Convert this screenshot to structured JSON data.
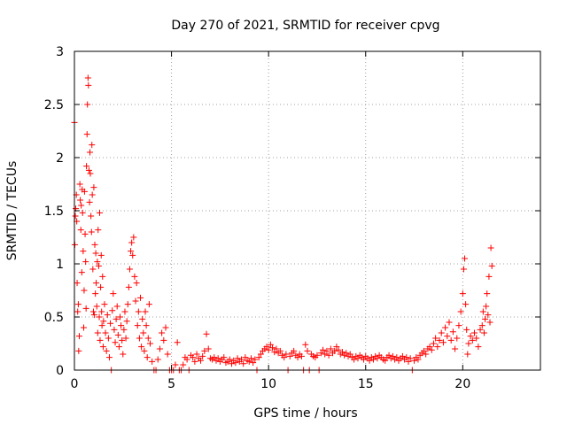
{
  "chart_data": {
    "type": "scatter",
    "title": "Day 270 of 2021, SRMTID for receiver cpvg",
    "xlabel": "GPS time / hours",
    "ylabel": "SRMTID / TECUs",
    "xlim": [
      0,
      24
    ],
    "ylim": [
      0,
      3
    ],
    "xticks": [
      0,
      5,
      10,
      15,
      20
    ],
    "yticks": [
      0,
      0.5,
      1,
      1.5,
      2,
      2.5,
      3
    ],
    "xtick_labels": [
      "0",
      "5",
      "10",
      "15",
      "20"
    ],
    "ytick_labels": [
      "0",
      "0.5",
      "1",
      "1.5",
      "2",
      "2.5",
      "3"
    ],
    "grid": true,
    "legend": "none",
    "series": [
      {
        "name": "SRMTID",
        "marker": "plus",
        "color": "#ff0000",
        "points": [
          [
            0.0,
            2.33
          ],
          [
            0.02,
            1.18
          ],
          [
            0.05,
            1.45
          ],
          [
            0.07,
            1.52
          ],
          [
            0.1,
            1.65
          ],
          [
            0.12,
            1.4
          ],
          [
            0.14,
            0.82
          ],
          [
            0.17,
            0.55
          ],
          [
            0.2,
            0.62
          ],
          [
            0.22,
            0.18
          ],
          [
            0.25,
            0.32
          ],
          [
            0.28,
            1.75
          ],
          [
            0.3,
            1.6
          ],
          [
            0.33,
            1.32
          ],
          [
            0.35,
            1.55
          ],
          [
            0.38,
            0.92
          ],
          [
            0.4,
            1.7
          ],
          [
            0.42,
            1.48
          ],
          [
            0.45,
            1.12
          ],
          [
            0.48,
            0.4
          ],
          [
            0.5,
            0.75
          ],
          [
            0.52,
            1.68
          ],
          [
            0.55,
            1.28
          ],
          [
            0.58,
            1.02
          ],
          [
            0.6,
            0.58
          ],
          [
            0.62,
            1.92
          ],
          [
            0.65,
            2.22
          ],
          [
            0.67,
            2.5
          ],
          [
            0.7,
            2.75
          ],
          [
            0.72,
            2.68
          ],
          [
            0.75,
            1.88
          ],
          [
            0.78,
            1.58
          ],
          [
            0.8,
            2.05
          ],
          [
            0.82,
            1.85
          ],
          [
            0.85,
            1.45
          ],
          [
            0.88,
            1.3
          ],
          [
            0.9,
            2.12
          ],
          [
            0.92,
            1.65
          ],
          [
            0.95,
            0.95
          ],
          [
            0.98,
            0.55
          ],
          [
            1.0,
            1.72
          ],
          [
            1.02,
            0.52
          ],
          [
            1.05,
            1.18
          ],
          [
            1.08,
            0.72
          ],
          [
            1.1,
            1.1
          ],
          [
            1.12,
            0.82
          ],
          [
            1.15,
            0.6
          ],
          [
            1.18,
            1.02
          ],
          [
            1.2,
            0.35
          ],
          [
            1.22,
            1.32
          ],
          [
            1.25,
            0.98
          ],
          [
            1.28,
            0.5
          ],
          [
            1.3,
            1.48
          ],
          [
            1.32,
            0.28
          ],
          [
            1.35,
            0.78
          ],
          [
            1.38,
            1.08
          ],
          [
            1.4,
            0.55
          ],
          [
            1.42,
            0.42
          ],
          [
            1.45,
            0.88
          ],
          [
            1.48,
            0.22
          ],
          [
            1.5,
            0.46
          ],
          [
            1.55,
            0.62
          ],
          [
            1.6,
            0.35
          ],
          [
            1.65,
            0.18
          ],
          [
            1.7,
            0.52
          ],
          [
            1.75,
            0.3
          ],
          [
            1.8,
            0.12
          ],
          [
            1.85,
            0.44
          ],
          [
            1.9,
            0.0
          ],
          [
            1.95,
            0.56
          ],
          [
            2.0,
            0.72
          ],
          [
            2.05,
            0.38
          ],
          [
            2.1,
            0.26
          ],
          [
            2.15,
            0.48
          ],
          [
            2.2,
            0.6
          ],
          [
            2.25,
            0.33
          ],
          [
            2.3,
            0.22
          ],
          [
            2.35,
            0.5
          ],
          [
            2.4,
            0.42
          ],
          [
            2.45,
            0.28
          ],
          [
            2.5,
            0.15
          ],
          [
            2.55,
            0.38
          ],
          [
            2.6,
            0.55
          ],
          [
            2.65,
            0.3
          ],
          [
            2.7,
            0.46
          ],
          [
            2.75,
            0.62
          ],
          [
            2.8,
            0.78
          ],
          [
            2.85,
            0.95
          ],
          [
            2.9,
            1.12
          ],
          [
            2.95,
            1.2
          ],
          [
            3.0,
            1.08
          ],
          [
            3.05,
            1.25
          ],
          [
            3.1,
            0.88
          ],
          [
            3.15,
            0.65
          ],
          [
            3.2,
            0.82
          ],
          [
            3.25,
            0.42
          ],
          [
            3.3,
            0.55
          ],
          [
            3.35,
            0.3
          ],
          [
            3.4,
            0.68
          ],
          [
            3.45,
            0.22
          ],
          [
            3.5,
            0.48
          ],
          [
            3.55,
            0.35
          ],
          [
            3.6,
            0.18
          ],
          [
            3.65,
            0.55
          ],
          [
            3.7,
            0.42
          ],
          [
            3.75,
            0.12
          ],
          [
            3.8,
            0.3
          ],
          [
            3.85,
            0.62
          ],
          [
            3.9,
            0.25
          ],
          [
            4.0,
            0.08
          ],
          [
            4.1,
            0.0
          ],
          [
            4.2,
            0.0
          ],
          [
            4.3,
            0.1
          ],
          [
            4.4,
            0.2
          ],
          [
            4.5,
            0.35
          ],
          [
            4.6,
            0.28
          ],
          [
            4.7,
            0.4
          ],
          [
            4.8,
            0.15
          ],
          [
            4.9,
            0.0
          ],
          [
            5.0,
            0.0
          ],
          [
            5.1,
            0.0
          ],
          [
            5.2,
            0.05
          ],
          [
            5.3,
            0.26
          ],
          [
            5.4,
            0.0
          ],
          [
            5.5,
            0.0
          ],
          [
            5.6,
            0.05
          ],
          [
            5.7,
            0.12
          ],
          [
            5.8,
            0.1
          ],
          [
            5.9,
            0.0
          ],
          [
            6.0,
            0.14
          ],
          [
            6.1,
            0.12
          ],
          [
            6.2,
            0.08
          ],
          [
            6.3,
            0.15
          ],
          [
            6.4,
            0.11
          ],
          [
            6.5,
            0.09
          ],
          [
            6.6,
            0.13
          ],
          [
            6.7,
            0.18
          ],
          [
            6.8,
            0.34
          ],
          [
            6.9,
            0.2
          ],
          [
            7.0,
            0.11
          ],
          [
            7.1,
            0.1
          ],
          [
            7.2,
            0.12
          ],
          [
            7.3,
            0.09
          ],
          [
            7.4,
            0.11
          ],
          [
            7.5,
            0.08
          ],
          [
            7.6,
            0.1
          ],
          [
            7.7,
            0.12
          ],
          [
            7.8,
            0.07
          ],
          [
            7.9,
            0.08
          ],
          [
            8.0,
            0.1
          ],
          [
            8.1,
            0.06
          ],
          [
            8.2,
            0.09
          ],
          [
            8.3,
            0.07
          ],
          [
            8.4,
            0.11
          ],
          [
            8.5,
            0.08
          ],
          [
            8.6,
            0.1
          ],
          [
            8.7,
            0.06
          ],
          [
            8.8,
            0.12
          ],
          [
            8.9,
            0.09
          ],
          [
            9.0,
            0.08
          ],
          [
            9.1,
            0.11
          ],
          [
            9.2,
            0.07
          ],
          [
            9.3,
            0.1
          ],
          [
            9.4,
            0.0
          ],
          [
            9.5,
            0.12
          ],
          [
            9.6,
            0.15
          ],
          [
            9.7,
            0.18
          ],
          [
            9.8,
            0.2
          ],
          [
            9.9,
            0.22
          ],
          [
            10.0,
            0.19
          ],
          [
            10.1,
            0.24
          ],
          [
            10.2,
            0.21
          ],
          [
            10.3,
            0.17
          ],
          [
            10.4,
            0.2
          ],
          [
            10.5,
            0.16
          ],
          [
            10.6,
            0.18
          ],
          [
            10.7,
            0.14
          ],
          [
            10.8,
            0.12
          ],
          [
            10.9,
            0.15
          ],
          [
            11.0,
            0.0
          ],
          [
            11.1,
            0.13
          ],
          [
            11.2,
            0.16
          ],
          [
            11.3,
            0.18
          ],
          [
            11.4,
            0.14
          ],
          [
            11.5,
            0.12
          ],
          [
            11.6,
            0.15
          ],
          [
            11.7,
            0.13
          ],
          [
            11.8,
            0.0
          ],
          [
            11.9,
            0.24
          ],
          [
            12.0,
            0.18
          ],
          [
            12.1,
            0.0
          ],
          [
            12.2,
            0.15
          ],
          [
            12.3,
            0.13
          ],
          [
            12.4,
            0.12
          ],
          [
            12.5,
            0.14
          ],
          [
            12.6,
            0.0
          ],
          [
            12.7,
            0.16
          ],
          [
            12.8,
            0.19
          ],
          [
            12.9,
            0.15
          ],
          [
            13.0,
            0.18
          ],
          [
            13.1,
            0.14
          ],
          [
            13.2,
            0.2
          ],
          [
            13.3,
            0.16
          ],
          [
            13.4,
            0.18
          ],
          [
            13.5,
            0.22
          ],
          [
            13.6,
            0.19
          ],
          [
            13.7,
            0.15
          ],
          [
            13.8,
            0.17
          ],
          [
            13.9,
            0.14
          ],
          [
            14.0,
            0.16
          ],
          [
            14.1,
            0.13
          ],
          [
            14.2,
            0.15
          ],
          [
            14.3,
            0.12
          ],
          [
            14.4,
            0.1
          ],
          [
            14.5,
            0.13
          ],
          [
            14.6,
            0.11
          ],
          [
            14.7,
            0.14
          ],
          [
            14.8,
            0.12
          ],
          [
            14.9,
            0.1
          ],
          [
            15.0,
            0.13
          ],
          [
            15.1,
            0.11
          ],
          [
            15.2,
            0.09
          ],
          [
            15.3,
            0.12
          ],
          [
            15.4,
            0.1
          ],
          [
            15.5,
            0.13
          ],
          [
            15.6,
            0.11
          ],
          [
            15.7,
            0.14
          ],
          [
            15.8,
            0.12
          ],
          [
            15.9,
            0.1
          ],
          [
            16.0,
            0.09
          ],
          [
            16.1,
            0.12
          ],
          [
            16.2,
            0.14
          ],
          [
            16.3,
            0.11
          ],
          [
            16.4,
            0.13
          ],
          [
            16.5,
            0.1
          ],
          [
            16.6,
            0.12
          ],
          [
            16.7,
            0.09
          ],
          [
            16.8,
            0.11
          ],
          [
            16.9,
            0.13
          ],
          [
            17.0,
            0.1
          ],
          [
            17.1,
            0.12
          ],
          [
            17.2,
            0.08
          ],
          [
            17.3,
            0.11
          ],
          [
            17.4,
            0.0
          ],
          [
            17.5,
            0.09
          ],
          [
            17.6,
            0.12
          ],
          [
            17.7,
            0.1
          ],
          [
            17.8,
            0.14
          ],
          [
            17.9,
            0.16
          ],
          [
            18.0,
            0.18
          ],
          [
            18.1,
            0.15
          ],
          [
            18.2,
            0.2
          ],
          [
            18.3,
            0.22
          ],
          [
            18.4,
            0.19
          ],
          [
            18.5,
            0.25
          ],
          [
            18.6,
            0.3
          ],
          [
            18.7,
            0.22
          ],
          [
            18.8,
            0.28
          ],
          [
            18.9,
            0.35
          ],
          [
            19.0,
            0.26
          ],
          [
            19.1,
            0.4
          ],
          [
            19.2,
            0.32
          ],
          [
            19.3,
            0.45
          ],
          [
            19.4,
            0.28
          ],
          [
            19.5,
            0.36
          ],
          [
            19.6,
            0.2
          ],
          [
            19.7,
            0.3
          ],
          [
            19.8,
            0.42
          ],
          [
            19.9,
            0.55
          ],
          [
            20.0,
            0.72
          ],
          [
            20.05,
            0.95
          ],
          [
            20.1,
            1.05
          ],
          [
            20.15,
            0.62
          ],
          [
            20.2,
            0.38
          ],
          [
            20.25,
            0.15
          ],
          [
            20.3,
            0.25
          ],
          [
            20.4,
            0.32
          ],
          [
            20.5,
            0.28
          ],
          [
            20.6,
            0.35
          ],
          [
            20.7,
            0.3
          ],
          [
            20.8,
            0.22
          ],
          [
            20.9,
            0.38
          ],
          [
            21.0,
            0.42
          ],
          [
            21.05,
            0.55
          ],
          [
            21.1,
            0.35
          ],
          [
            21.15,
            0.48
          ],
          [
            21.2,
            0.6
          ],
          [
            21.25,
            0.72
          ],
          [
            21.3,
            0.52
          ],
          [
            21.35,
            0.88
          ],
          [
            21.4,
            0.45
          ],
          [
            21.45,
            1.15
          ],
          [
            21.5,
            0.98
          ]
        ]
      }
    ]
  }
}
